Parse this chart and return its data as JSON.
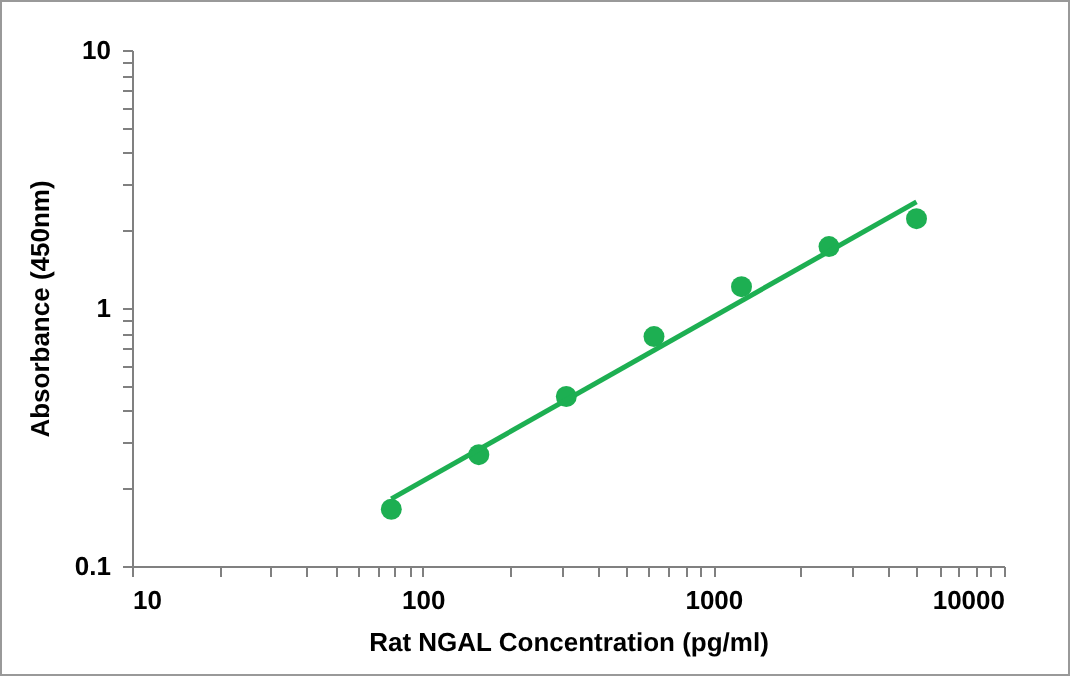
{
  "chart_data": {
    "type": "scatter",
    "xlabel": "Rat NGAL Concentration (pg/ml)",
    "ylabel": "Absorbance (450nm)",
    "log": "xy",
    "grid": false,
    "xlim": [
      10,
      10000
    ],
    "ylim": [
      0.1,
      10
    ],
    "xticks": [
      10,
      {
        "value": 20,
        "label": null
      },
      {
        "value": 30,
        "label": null
      },
      {
        "value": 40,
        "label": null
      },
      {
        "value": 50,
        "label": null
      },
      {
        "value": 60,
        "label": null
      },
      {
        "value": 70,
        "label": null
      },
      {
        "value": 80,
        "label": null
      },
      {
        "value": 90,
        "label": null
      },
      100,
      {
        "value": 200,
        "label": null
      },
      {
        "value": 300,
        "label": null
      },
      {
        "value": 400,
        "label": null
      },
      {
        "value": 500,
        "label": null
      },
      {
        "value": 600,
        "label": null
      },
      {
        "value": 700,
        "label": null
      },
      {
        "value": 800,
        "label": null
      },
      {
        "value": 900,
        "label": null
      },
      1000,
      {
        "value": 2000,
        "label": null
      },
      {
        "value": 3000,
        "label": null
      },
      {
        "value": 4000,
        "label": null
      },
      {
        "value": 5000,
        "label": null
      },
      {
        "value": 6000,
        "label": null
      },
      {
        "value": 7000,
        "label": null
      },
      {
        "value": 8000,
        "label": null
      },
      {
        "value": 9000,
        "label": null
      },
      10000
    ],
    "yticks": [
      0.1,
      {
        "value": 0.2,
        "label": null
      },
      {
        "value": 0.3,
        "label": null
      },
      {
        "value": 0.4,
        "label": null
      },
      {
        "value": 0.5,
        "label": null
      },
      {
        "value": 0.6,
        "label": null
      },
      {
        "value": 0.7,
        "label": null
      },
      {
        "value": 0.8,
        "label": null
      },
      {
        "value": 0.9,
        "label": null
      },
      1,
      {
        "value": 2,
        "label": null
      },
      {
        "value": 3,
        "label": null
      },
      {
        "value": 4,
        "label": null
      },
      {
        "value": 5,
        "label": null
      },
      {
        "value": 6,
        "label": null
      },
      {
        "value": 7,
        "label": null
      },
      {
        "value": 8,
        "label": null
      },
      {
        "value": 9,
        "label": null
      },
      10
    ],
    "series": [
      {
        "marker": "circle",
        "color": "#1daf52",
        "x": [
          78,
          156,
          312,
          625,
          1250,
          2500,
          5000
        ],
        "values": [
          0.166,
          0.27,
          0.454,
          0.775,
          1.21,
          1.73,
          2.22
        ]
      },
      {
        "type": "line",
        "marker": "none",
        "color": "#1daf52",
        "x": [
          78,
          5000
        ],
        "values": [
          0.182,
          2.58
        ]
      }
    ]
  }
}
